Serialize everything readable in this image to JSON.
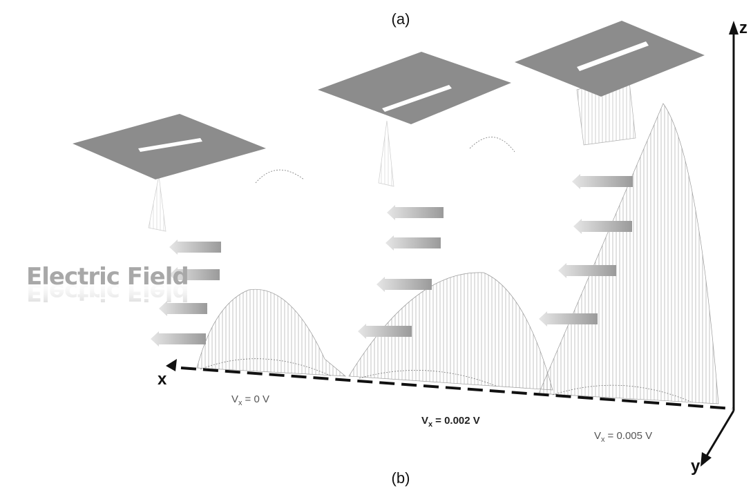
{
  "figure": {
    "panel_labels": [
      "(a)",
      "(b)"
    ],
    "axes": {
      "z": "z",
      "x": "x",
      "y": "y"
    },
    "field_label": "Electric Field",
    "voltages": [
      {
        "symbol": "V",
        "subscript": "x",
        "value": "= 0 V"
      },
      {
        "symbol": "V",
        "subscript": "x",
        "value": "= 0.002 V"
      },
      {
        "symbol": "V",
        "subscript": "x",
        "value": "= 0.005 V"
      }
    ]
  }
}
